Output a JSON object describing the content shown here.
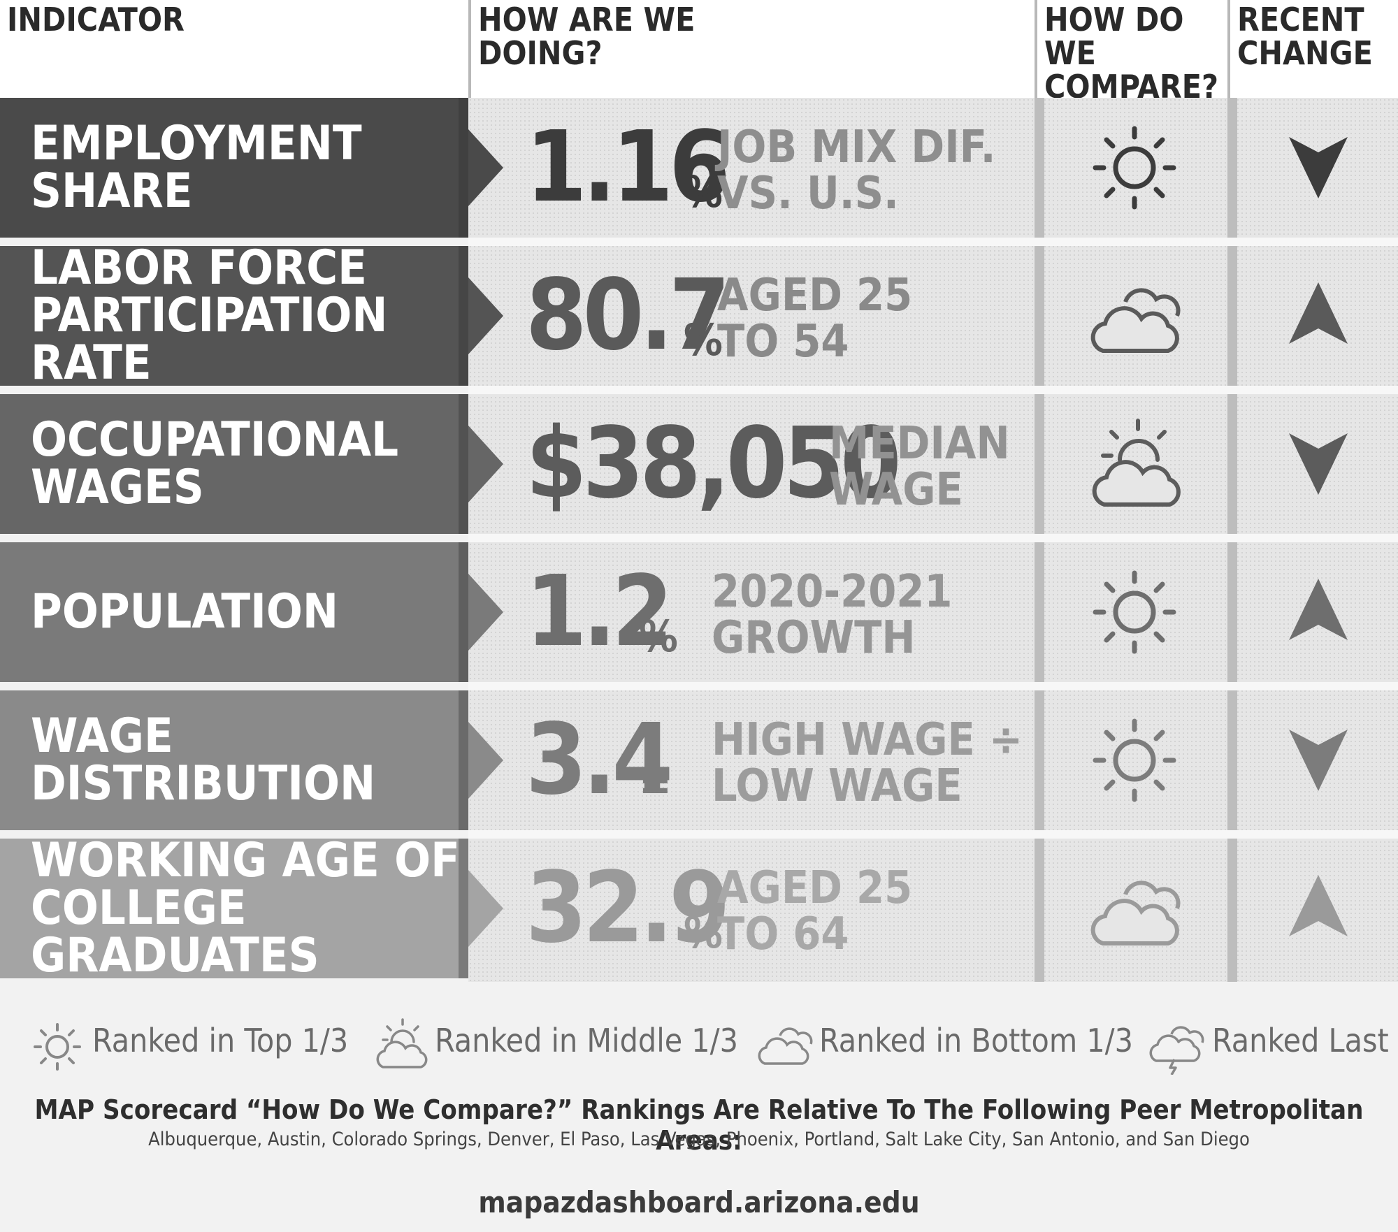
{
  "header": {
    "indicator": "INDICATOR",
    "how_doing_1": "HOW ARE WE",
    "how_doing_2": "DOING?",
    "compare_1": "HOW DO WE",
    "compare_2": "COMPARE?",
    "change_1": "RECENT",
    "change_2": "CHANGE"
  },
  "rows": [
    {
      "label_1": "EMPLOYMENT SHARE",
      "label_2": "",
      "value": "1.16",
      "unit": "%",
      "desc_1": "JOB MIX DIF.",
      "desc_2": "VS. U.S.",
      "compare_icon": "sun-icon",
      "change": "down",
      "banner_color": "#4a4a4a",
      "text_color": "#3c3c3c",
      "desc_color": "#8e8e8e"
    },
    {
      "label_1": "LABOR FORCE",
      "label_2": "PARTICIPATION RATE",
      "value": "80.7",
      "unit": "%",
      "desc_1": "AGED 25",
      "desc_2": "TO 54",
      "compare_icon": "cloud-icon",
      "change": "up",
      "banner_color": "#545454",
      "text_color": "#5a5a5a",
      "desc_color": "#8a8a8a"
    },
    {
      "label_1": "OCCUPATIONAL",
      "label_2": "WAGES",
      "value": "$38,050",
      "unit": "",
      "desc_1": "MEDIAN",
      "desc_2": "WAGE",
      "compare_icon": "partly-cloudy-icon",
      "change": "down",
      "banner_color": "#666666",
      "text_color": "#5c5c5c",
      "desc_color": "#929292"
    },
    {
      "label_1": "POPULATION",
      "label_2": "",
      "value": "1.2",
      "unit": "%",
      "desc_1": "2020-2021",
      "desc_2": "GROWTH",
      "compare_icon": "sun-icon",
      "change": "up",
      "banner_color": "#7a7a7a",
      "text_color": "#6e6e6e",
      "desc_color": "#959595"
    },
    {
      "label_1": "WAGE DISTRIBUTION",
      "label_2": "",
      "value": "3.4",
      "unit": "=",
      "desc_1": "HIGH WAGE ÷",
      "desc_2": "LOW WAGE",
      "compare_icon": "sun-icon",
      "change": "down",
      "banner_color": "#8a8a8a",
      "text_color": "#7c7c7c",
      "desc_color": "#9c9c9c"
    },
    {
      "label_1": "WORKING AGE OF",
      "label_2": "COLLEGE GRADUATES",
      "value": "32.9",
      "unit": "%",
      "desc_1": "AGED 25",
      "desc_2": "TO 64",
      "compare_icon": "cloud-icon",
      "change": "up",
      "banner_color": "#a4a4a4",
      "text_color": "#9a9a9a",
      "desc_color": "#a8a8a8"
    }
  ],
  "legend": {
    "top": "Ranked in Top 1/3",
    "middle": "Ranked in Middle 1/3",
    "bottom": "Ranked in Bottom 1/3",
    "last": "Ranked Last"
  },
  "footer": {
    "title": "MAP Scorecard “How Do We Compare?” Rankings Are Relative To The Following Peer Metropolitan Areas:",
    "areas": "Albuquerque, Austin, Colorado Springs, Denver, El Paso, Las Vegas, Phoenix, Portland, Salt Lake City, San Antonio, and San Diego",
    "url": "mapazdashboard.arizona.edu"
  }
}
